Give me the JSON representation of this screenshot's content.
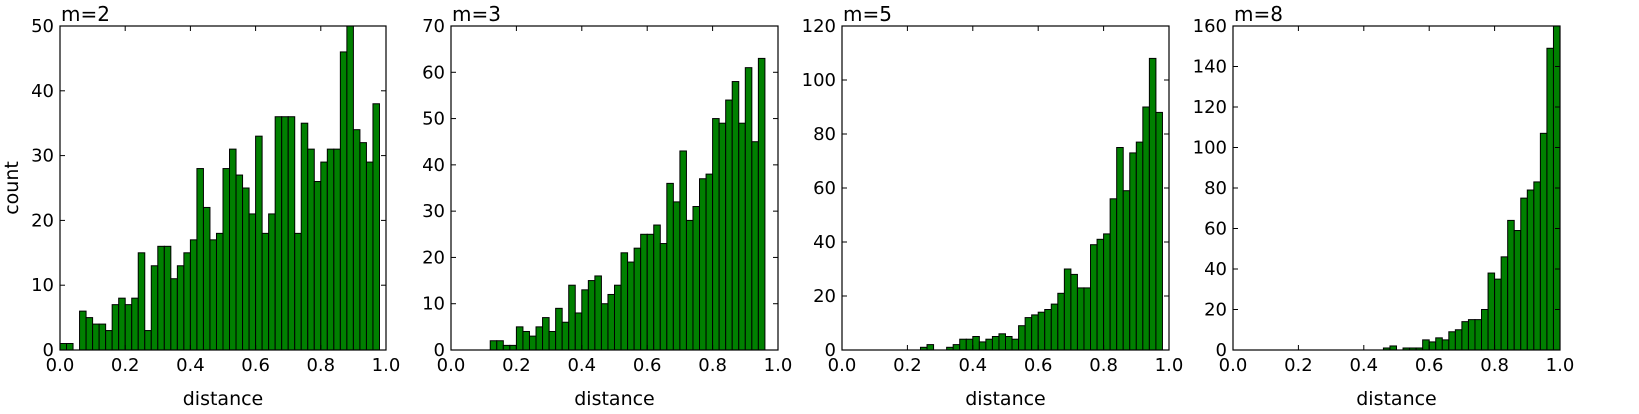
{
  "chart_data": [
    {
      "type": "bar",
      "title": "m=2",
      "xlabel": "distance",
      "ylabel": "count",
      "xlim": [
        0.0,
        1.0
      ],
      "ylim": [
        0,
        50
      ],
      "xticks": [
        "0.0",
        "0.2",
        "0.4",
        "0.6",
        "0.8",
        "1.0"
      ],
      "yticks": [
        "0",
        "10",
        "20",
        "30",
        "40",
        "50"
      ],
      "bin_width": 0.02,
      "bin_starts": [
        0.0,
        0.02,
        0.04,
        0.06,
        0.08,
        0.1,
        0.12,
        0.14,
        0.16,
        0.18,
        0.2,
        0.22,
        0.24,
        0.26,
        0.28,
        0.3,
        0.32,
        0.34,
        0.36,
        0.38,
        0.4,
        0.42,
        0.44,
        0.46,
        0.48,
        0.5,
        0.52,
        0.54,
        0.56,
        0.58,
        0.6,
        0.62,
        0.64,
        0.66,
        0.68,
        0.7,
        0.72,
        0.74,
        0.76,
        0.78,
        0.8,
        0.82,
        0.84,
        0.86,
        0.88,
        0.9,
        0.92,
        0.94,
        0.96,
        0.98
      ],
      "values": [
        1,
        1,
        0,
        6,
        5,
        4,
        4,
        3,
        7,
        8,
        7,
        8,
        15,
        3,
        13,
        16,
        16,
        11,
        13,
        15,
        17,
        28,
        22,
        17,
        18,
        28,
        31,
        27,
        25,
        21,
        33,
        18,
        21,
        36,
        36,
        36,
        18,
        35,
        31,
        26,
        29,
        31,
        31,
        46,
        50,
        34,
        32,
        29,
        38,
        0
      ],
      "color": "#008000"
    },
    {
      "type": "bar",
      "title": "m=3",
      "xlabel": "distance",
      "ylabel": "",
      "xlim": [
        0.0,
        1.0
      ],
      "ylim": [
        0,
        70
      ],
      "xticks": [
        "0.0",
        "0.2",
        "0.4",
        "0.6",
        "0.8",
        "1.0"
      ],
      "yticks": [
        "0",
        "10",
        "20",
        "30",
        "40",
        "50",
        "60",
        "70"
      ],
      "bin_width": 0.02,
      "bin_starts": [
        0.0,
        0.02,
        0.04,
        0.06,
        0.08,
        0.1,
        0.12,
        0.14,
        0.16,
        0.18,
        0.2,
        0.22,
        0.24,
        0.26,
        0.28,
        0.3,
        0.32,
        0.34,
        0.36,
        0.38,
        0.4,
        0.42,
        0.44,
        0.46,
        0.48,
        0.5,
        0.52,
        0.54,
        0.56,
        0.58,
        0.6,
        0.62,
        0.64,
        0.66,
        0.68,
        0.7,
        0.72,
        0.74,
        0.76,
        0.78,
        0.8,
        0.82,
        0.84,
        0.86,
        0.88,
        0.9,
        0.92,
        0.94,
        0.96,
        0.98
      ],
      "values": [
        0,
        0,
        0,
        0,
        0,
        0,
        2,
        2,
        1,
        1,
        5,
        4,
        3,
        5,
        7,
        4,
        9,
        6,
        14,
        8,
        13,
        15,
        16,
        10,
        12,
        14,
        21,
        19,
        22,
        25,
        25,
        27,
        23,
        36,
        32,
        43,
        28,
        31,
        37,
        38,
        50,
        49,
        54,
        58,
        49,
        61,
        45,
        63,
        0,
        0
      ],
      "color": "#008000"
    },
    {
      "type": "bar",
      "title": "m=5",
      "xlabel": "distance",
      "ylabel": "",
      "xlim": [
        0.0,
        1.0
      ],
      "ylim": [
        0,
        120
      ],
      "xticks": [
        "0.0",
        "0.2",
        "0.4",
        "0.6",
        "0.8",
        "1.0"
      ],
      "yticks": [
        "0",
        "20",
        "40",
        "60",
        "80",
        "100",
        "120"
      ],
      "bin_width": 0.02,
      "bin_starts": [
        0.0,
        0.02,
        0.04,
        0.06,
        0.08,
        0.1,
        0.12,
        0.14,
        0.16,
        0.18,
        0.2,
        0.22,
        0.24,
        0.26,
        0.28,
        0.3,
        0.32,
        0.34,
        0.36,
        0.38,
        0.4,
        0.42,
        0.44,
        0.46,
        0.48,
        0.5,
        0.52,
        0.54,
        0.56,
        0.58,
        0.6,
        0.62,
        0.64,
        0.66,
        0.68,
        0.7,
        0.72,
        0.74,
        0.76,
        0.78,
        0.8,
        0.82,
        0.84,
        0.86,
        0.88,
        0.9,
        0.92,
        0.94,
        0.96,
        0.98
      ],
      "values": [
        0,
        0,
        0,
        0,
        0,
        0,
        0,
        0,
        0,
        0,
        0,
        0,
        1,
        2,
        0,
        0,
        1,
        2,
        4,
        4,
        5,
        3,
        4,
        5,
        6,
        5,
        4,
        9,
        12,
        13,
        14,
        15,
        17,
        21,
        30,
        28,
        23,
        23,
        39,
        41,
        43,
        56,
        75,
        59,
        73,
        77,
        90,
        108,
        88,
        0
      ],
      "color": "#008000"
    },
    {
      "type": "bar",
      "title": "m=8",
      "xlabel": "distance",
      "ylabel": "",
      "xlim": [
        0.0,
        1.0
      ],
      "ylim": [
        0,
        160
      ],
      "xticks": [
        "0.0",
        "0.2",
        "0.4",
        "0.6",
        "0.8",
        "1.0"
      ],
      "yticks": [
        "0",
        "20",
        "40",
        "60",
        "80",
        "100",
        "120",
        "140",
        "160"
      ],
      "bin_width": 0.02,
      "bin_starts": [
        0.0,
        0.02,
        0.04,
        0.06,
        0.08,
        0.1,
        0.12,
        0.14,
        0.16,
        0.18,
        0.2,
        0.22,
        0.24,
        0.26,
        0.28,
        0.3,
        0.32,
        0.34,
        0.36,
        0.38,
        0.4,
        0.42,
        0.44,
        0.46,
        0.48,
        0.5,
        0.52,
        0.54,
        0.56,
        0.58,
        0.6,
        0.62,
        0.64,
        0.66,
        0.68,
        0.7,
        0.72,
        0.74,
        0.76,
        0.78,
        0.8,
        0.82,
        0.84,
        0.86,
        0.88,
        0.9,
        0.92,
        0.94,
        0.96,
        0.98
      ],
      "values": [
        0,
        0,
        0,
        0,
        0,
        0,
        0,
        0,
        0,
        0,
        0,
        0,
        0,
        0,
        0,
        0,
        0,
        0,
        0,
        0,
        0,
        0,
        0,
        1,
        2,
        0,
        1,
        1,
        1,
        5,
        4,
        6,
        5,
        9,
        10,
        14,
        15,
        15,
        20,
        38,
        35,
        46,
        64,
        59,
        75,
        79,
        83,
        107,
        149,
        160
      ],
      "color": "#008000"
    }
  ]
}
